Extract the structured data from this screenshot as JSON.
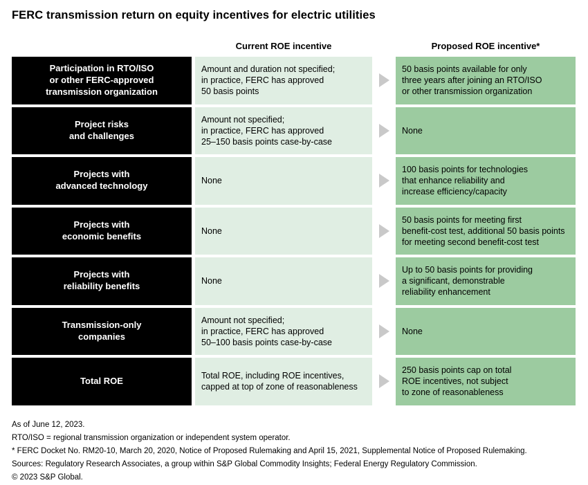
{
  "title": "FERC transmission return on equity incentives for electric utilities",
  "columns": {
    "current": "Current ROE incentive",
    "proposed": "Proposed ROE incentive*"
  },
  "colors": {
    "label_bg": "#000000",
    "label_text": "#ffffff",
    "current_bg": "#e0eee3",
    "proposed_bg": "#9ccba0",
    "arrow": "#c9c9c9",
    "background": "#ffffff"
  },
  "icons": {
    "arrow": "right-triangle-arrow"
  },
  "chart_data": {
    "type": "table",
    "title": "FERC transmission return on equity incentives for electric utilities",
    "columns": [
      "Category",
      "Current ROE incentive",
      "Proposed ROE incentive*"
    ],
    "rows": [
      {
        "label": "Participation in RTO/ISO\nor other FERC-approved\ntransmission organization",
        "current": "Amount and duration not specified;\nin practice, FERC has approved\n50 basis points",
        "proposed": "50 basis points available for only\nthree years after joining an RTO/ISO\nor other transmission organization"
      },
      {
        "label": "Project risks\nand challenges",
        "current": "Amount not specified;\nin practice, FERC has approved\n25–150 basis points case-by-case",
        "proposed": "None"
      },
      {
        "label": "Projects with\nadvanced technology",
        "current": "None",
        "proposed": "100 basis points for technologies\nthat enhance reliability and\nincrease efficiency/capacity"
      },
      {
        "label": "Projects with\neconomic benefits",
        "current": "None",
        "proposed": "50 basis points for meeting first\nbenefit-cost test, additional 50 basis points\nfor meeting second benefit-cost test"
      },
      {
        "label": "Projects with\nreliability benefits",
        "current": "None",
        "proposed": "Up to 50 basis points for providing\na significant, demonstrable\nreliability enhancement"
      },
      {
        "label": "Transmission-only\ncompanies",
        "current": "Amount not specified;\nin practice, FERC has approved\n50–100 basis points case-by-case",
        "proposed": "None"
      },
      {
        "label": "Total ROE",
        "current": "Total ROE, including ROE incentives,\ncapped at top of zone of reasonableness",
        "proposed": "250 basis points cap on total\nROE incentives, not subject\nto zone of reasonableness"
      }
    ]
  },
  "footnotes": [
    "As of June 12, 2023.",
    "RTO/ISO = regional transmission organization or independent system operator.",
    "* FERC Docket No. RM20-10, March 20, 2020, Notice of Proposed Rulemaking and April 15, 2021, Supplemental Notice of Proposed Rulemaking.",
    "Sources: Regulatory Research Associates, a group within S&P Global Commodity Insights; Federal Energy Regulatory Commission.",
    "© 2023 S&P Global."
  ]
}
